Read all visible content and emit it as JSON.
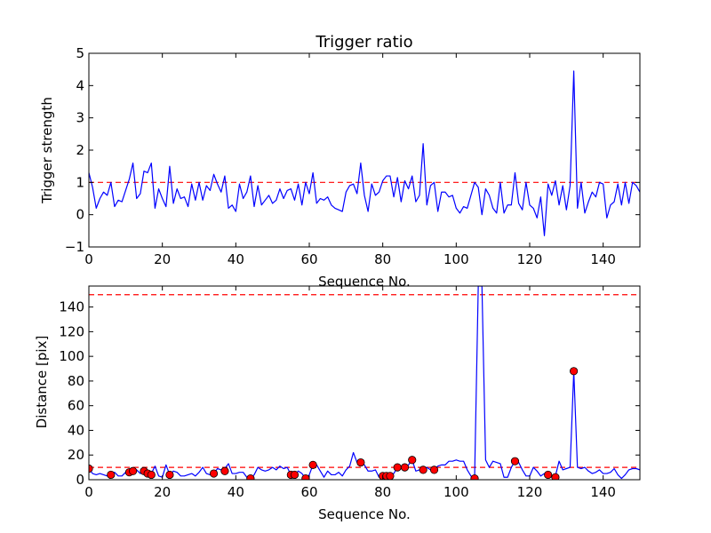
{
  "chart_data": [
    {
      "type": "line",
      "title": "Trigger ratio",
      "xlabel": "Sequence No.",
      "ylabel": "Trigger strength",
      "xlim": [
        0,
        150
      ],
      "ylim": [
        -1,
        5
      ],
      "xticks": [
        0,
        20,
        40,
        60,
        80,
        100,
        120,
        140
      ],
      "yticks": [
        -1,
        0,
        1,
        2,
        3,
        4,
        5
      ],
      "grid": false,
      "series": [
        {
          "color": "#0000ff",
          "x": [
            0,
            1,
            2,
            3,
            4,
            5,
            6,
            7,
            8,
            9,
            10,
            11,
            12,
            13,
            14,
            15,
            16,
            17,
            18,
            19,
            20,
            21,
            22,
            23,
            24,
            25,
            26,
            27,
            28,
            29,
            30,
            31,
            32,
            33,
            34,
            35,
            36,
            37,
            38,
            39,
            40,
            41,
            42,
            43,
            44,
            45,
            46,
            47,
            48,
            49,
            50,
            51,
            52,
            53,
            54,
            55,
            56,
            57,
            58,
            59,
            60,
            61,
            62,
            63,
            64,
            65,
            66,
            67,
            68,
            69,
            70,
            71,
            72,
            73,
            74,
            75,
            76,
            77,
            78,
            79,
            80,
            81,
            82,
            83,
            84,
            85,
            86,
            87,
            88,
            89,
            90,
            91,
            92,
            93,
            94,
            95,
            96,
            97,
            98,
            99,
            100,
            101,
            102,
            103,
            104,
            105,
            106,
            107,
            108,
            109,
            110,
            111,
            112,
            113,
            114,
            115,
            116,
            117,
            118,
            119,
            120,
            121,
            122,
            123,
            124,
            125,
            126,
            127,
            128,
            129,
            130,
            131,
            132,
            133,
            134,
            135,
            136,
            137,
            138,
            139,
            140,
            141,
            142,
            143,
            144,
            145,
            146,
            147,
            148,
            149,
            150
          ],
          "y": [
            1.3,
            0.85,
            0.2,
            0.5,
            0.7,
            0.6,
            1.0,
            0.25,
            0.45,
            0.4,
            0.75,
            1.1,
            1.6,
            0.5,
            0.65,
            1.35,
            1.3,
            1.6,
            0.2,
            0.8,
            0.5,
            0.25,
            1.5,
            0.35,
            0.8,
            0.5,
            0.55,
            0.25,
            0.95,
            0.45,
            1.0,
            0.45,
            0.9,
            0.75,
            1.25,
            0.95,
            0.7,
            1.2,
            0.2,
            0.3,
            0.1,
            0.95,
            0.5,
            0.7,
            1.2,
            0.25,
            0.9,
            0.3,
            0.45,
            0.6,
            0.35,
            0.45,
            0.8,
            0.5,
            0.75,
            0.8,
            0.45,
            0.95,
            0.3,
            1.0,
            0.65,
            1.3,
            0.35,
            0.5,
            0.45,
            0.55,
            0.3,
            0.2,
            0.15,
            0.1,
            0.7,
            0.9,
            0.95,
            0.65,
            1.6,
            0.6,
            0.1,
            0.95,
            0.6,
            0.7,
            1.05,
            1.2,
            1.2,
            0.55,
            1.15,
            0.4,
            1.05,
            0.8,
            1.2,
            0.4,
            0.6,
            2.2,
            0.3,
            0.9,
            1.0,
            0.1,
            0.7,
            0.7,
            0.55,
            0.6,
            0.2,
            0.05,
            0.25,
            0.2,
            0.6,
            1.0,
            0.85,
            0.0,
            0.8,
            0.6,
            0.2,
            0.05,
            1.0,
            0.05,
            0.3,
            0.3,
            1.3,
            0.35,
            0.15,
            1.0,
            0.3,
            0.2,
            -0.1,
            0.55,
            -0.65,
            0.95,
            0.6,
            1.05,
            0.3,
            0.9,
            0.15,
            0.9,
            4.45,
            0.2,
            1.0,
            0.05,
            0.4,
            0.7,
            0.55,
            1.0,
            0.95,
            -0.1,
            0.3,
            0.4,
            0.95,
            0.3,
            1.0,
            0.35,
            1.0,
            0.9,
            0.7
          ]
        }
      ],
      "reference_lines": [
        {
          "axis": "y",
          "value": 1,
          "color": "#ff0000",
          "style": "dashed"
        }
      ]
    },
    {
      "type": "line",
      "title": "",
      "xlabel": "Sequence No.",
      "ylabel": "Distance [pix]",
      "xlim": [
        0,
        150
      ],
      "ylim": [
        0,
        157
      ],
      "xticks": [
        0,
        20,
        40,
        60,
        80,
        100,
        120,
        140
      ],
      "yticks": [
        0,
        20,
        40,
        60,
        80,
        100,
        120,
        140
      ],
      "grid": false,
      "series": [
        {
          "color": "#0000ff",
          "x": [
            0,
            1,
            2,
            3,
            4,
            5,
            6,
            7,
            8,
            9,
            10,
            11,
            12,
            13,
            14,
            15,
            16,
            17,
            18,
            19,
            20,
            21,
            22,
            23,
            24,
            25,
            26,
            27,
            28,
            29,
            30,
            31,
            32,
            33,
            34,
            35,
            36,
            37,
            38,
            39,
            40,
            41,
            42,
            43,
            44,
            45,
            46,
            47,
            48,
            49,
            50,
            51,
            52,
            53,
            54,
            55,
            56,
            57,
            58,
            59,
            60,
            61,
            62,
            63,
            64,
            65,
            66,
            67,
            68,
            69,
            70,
            71,
            72,
            73,
            74,
            75,
            76,
            77,
            78,
            79,
            80,
            81,
            82,
            83,
            84,
            85,
            86,
            87,
            88,
            89,
            90,
            91,
            92,
            93,
            94,
            95,
            96,
            97,
            98,
            99,
            100,
            101,
            102,
            103,
            104,
            105,
            106,
            107,
            108,
            109,
            110,
            111,
            112,
            113,
            114,
            115,
            116,
            117,
            118,
            119,
            120,
            121,
            122,
            123,
            124,
            125,
            126,
            127,
            128,
            129,
            130,
            131,
            132,
            133,
            134,
            135,
            136,
            137,
            138,
            139,
            140,
            141,
            142,
            143,
            144,
            145,
            146,
            147,
            148,
            149,
            150
          ],
          "y": [
            9,
            5,
            4,
            5,
            4,
            3,
            4,
            6,
            3,
            3,
            6,
            7,
            7,
            8,
            5,
            7,
            5,
            5,
            11,
            3,
            2,
            12,
            4,
            7,
            6,
            3,
            3,
            4,
            5,
            3,
            6,
            10,
            5,
            4,
            5,
            9,
            8,
            9,
            13,
            5,
            5,
            6,
            6,
            2,
            1,
            4,
            10,
            8,
            7,
            8,
            10,
            8,
            11,
            9,
            10,
            4,
            4,
            7,
            5,
            1,
            4,
            12,
            12,
            7,
            2,
            7,
            4,
            4,
            6,
            3,
            8,
            11,
            22,
            14,
            14,
            12,
            7,
            7,
            8,
            2,
            3,
            3,
            3,
            5,
            10,
            10,
            10,
            12,
            16,
            7,
            8,
            8,
            10,
            8,
            8,
            11,
            12,
            12,
            15,
            15,
            16,
            15,
            15,
            8,
            3,
            1,
            157,
            157,
            16,
            10,
            15,
            14,
            13,
            2,
            2,
            10,
            15,
            14,
            8,
            3,
            3,
            10,
            7,
            3,
            5,
            3,
            2,
            3,
            15,
            8,
            9,
            10,
            88,
            10,
            9,
            10,
            7,
            5,
            6,
            8,
            5,
            5,
            6,
            9,
            4,
            1,
            4,
            8,
            9,
            9,
            8
          ]
        },
        {
          "color": "#ff0000",
          "marker": "circle",
          "x": [
            0,
            6,
            11,
            12,
            15,
            16,
            17,
            22,
            34,
            37,
            44,
            55,
            56,
            59,
            61,
            74,
            80,
            81,
            82,
            84,
            86,
            88,
            91,
            94,
            105,
            116,
            125,
            127,
            132
          ],
          "y": [
            9,
            4,
            6,
            7,
            7,
            5,
            4,
            4,
            5,
            7,
            1,
            4,
            4,
            1,
            12,
            14,
            3,
            3,
            3,
            10,
            10,
            16,
            8,
            8,
            1,
            15,
            4,
            2,
            88
          ]
        }
      ],
      "reference_lines": [
        {
          "axis": "y",
          "value": 10,
          "color": "#ff0000",
          "style": "dashed"
        },
        {
          "axis": "y",
          "value": 150,
          "color": "#ff0000",
          "style": "dashed"
        }
      ]
    }
  ]
}
